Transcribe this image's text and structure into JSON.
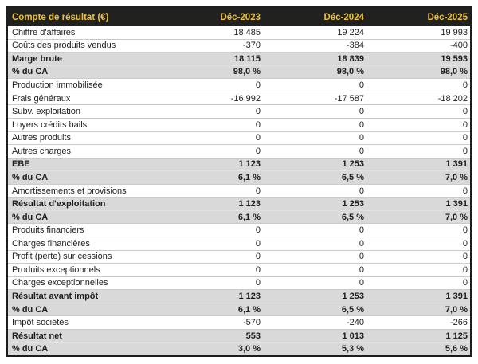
{
  "table": {
    "title": "Compte de résultat (€)",
    "columns": [
      "Déc-2023",
      "Déc-2024",
      "Déc-2025"
    ],
    "rows": [
      {
        "label": "Chiffre d'affaires",
        "values": [
          "18 485",
          "19 224",
          "19 993"
        ],
        "emphasis": false
      },
      {
        "label": "Coûts des produits vendus",
        "values": [
          "-370",
          "-384",
          "-400"
        ],
        "emphasis": false
      },
      {
        "label": "Marge brute",
        "values": [
          "18 115",
          "18 839",
          "19 593"
        ],
        "emphasis": true
      },
      {
        "label": "% du CA",
        "values": [
          "98,0 %",
          "98,0 %",
          "98,0 %"
        ],
        "emphasis": true
      },
      {
        "label": "Production immobilisée",
        "values": [
          "0",
          "0",
          "0"
        ],
        "emphasis": false
      },
      {
        "label": "Frais généraux",
        "values": [
          "-16 992",
          "-17 587",
          "-18 202"
        ],
        "emphasis": false
      },
      {
        "label": "Subv. exploitation",
        "values": [
          "0",
          "0",
          "0"
        ],
        "emphasis": false
      },
      {
        "label": "Loyers crédits bails",
        "values": [
          "0",
          "0",
          "0"
        ],
        "emphasis": false
      },
      {
        "label": "Autres produits",
        "values": [
          "0",
          "0",
          "0"
        ],
        "emphasis": false
      },
      {
        "label": "Autres charges",
        "values": [
          "0",
          "0",
          "0"
        ],
        "emphasis": false
      },
      {
        "label": "EBE",
        "values": [
          "1 123",
          "1 253",
          "1 391"
        ],
        "emphasis": true
      },
      {
        "label": "% du CA",
        "values": [
          "6,1 %",
          "6,5 %",
          "7,0 %"
        ],
        "emphasis": true
      },
      {
        "label": "Amortissements et provisions",
        "values": [
          "0",
          "0",
          "0"
        ],
        "emphasis": false
      },
      {
        "label": "Résultat d'exploitation",
        "values": [
          "1 123",
          "1 253",
          "1 391"
        ],
        "emphasis": true
      },
      {
        "label": "% du CA",
        "values": [
          "6,1 %",
          "6,5 %",
          "7,0 %"
        ],
        "emphasis": true
      },
      {
        "label": "Produits financiers",
        "values": [
          "0",
          "0",
          "0"
        ],
        "emphasis": false
      },
      {
        "label": "Charges financières",
        "values": [
          "0",
          "0",
          "0"
        ],
        "emphasis": false
      },
      {
        "label": "Profit (perte) sur cessions",
        "values": [
          "0",
          "0",
          "0"
        ],
        "emphasis": false
      },
      {
        "label": "Produits exceptionnels",
        "values": [
          "0",
          "0",
          "0"
        ],
        "emphasis": false
      },
      {
        "label": "Charges exceptionnelles",
        "values": [
          "0",
          "0",
          "0"
        ],
        "emphasis": false
      },
      {
        "label": "Résultat avant impôt",
        "values": [
          "1 123",
          "1 253",
          "1 391"
        ],
        "emphasis": true
      },
      {
        "label": "% du CA",
        "values": [
          "6,1 %",
          "6,5 %",
          "7,0 %"
        ],
        "emphasis": true
      },
      {
        "label": "Impôt sociétés",
        "values": [
          "-570",
          "-240",
          "-266"
        ],
        "emphasis": false
      },
      {
        "label": "Résultat net",
        "values": [
          "553",
          "1 013",
          "1 125"
        ],
        "emphasis": true
      },
      {
        "label": "% du CA",
        "values": [
          "3,0 %",
          "5,3 %",
          "5,6 %"
        ],
        "emphasis": true
      }
    ],
    "colors": {
      "header_bg": "#21211f",
      "header_text": "#f0c12e",
      "band_bg": "#d9d9d9",
      "outer_border": "#1d1d1b",
      "row_line": "#cbcbcb",
      "text": "#1e1e1e"
    }
  }
}
